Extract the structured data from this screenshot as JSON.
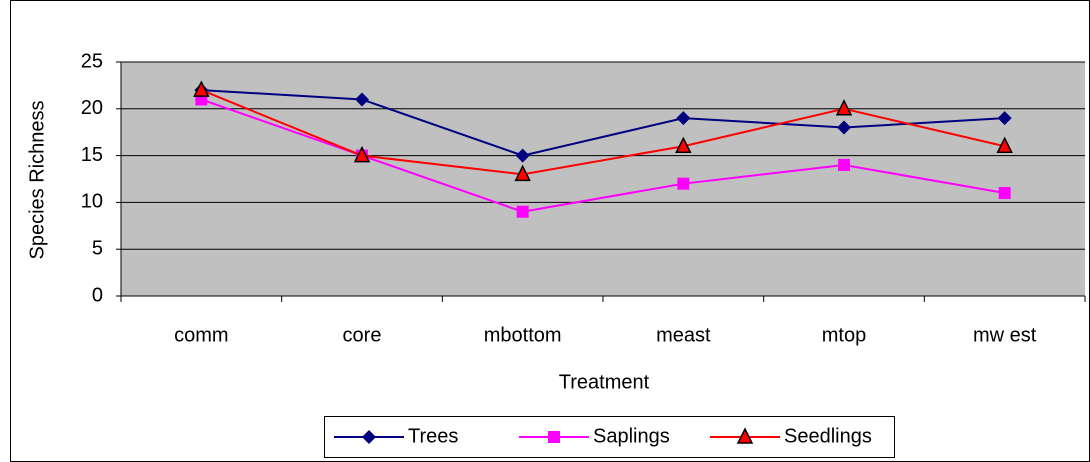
{
  "chart_data": {
    "type": "line",
    "x_label": "Treatment",
    "y_label": "Species Richness",
    "categories": [
      "comm",
      "core",
      "mbottom",
      "meast",
      "mtop",
      "mw est"
    ],
    "series": [
      {
        "name": "Trees",
        "color": "#000080",
        "marker": "diamond",
        "values": [
          22,
          21,
          15,
          19,
          18,
          19
        ]
      },
      {
        "name": "Saplings",
        "color": "#ff00ff",
        "marker": "square",
        "values": [
          21,
          15,
          9,
          12,
          14,
          11
        ]
      },
      {
        "name": "Seedlings",
        "color": "#ff0000",
        "marker": "triangle",
        "values": [
          22,
          15,
          13,
          16,
          20,
          16
        ]
      }
    ],
    "ylim": [
      0,
      25
    ],
    "yticks": [
      0,
      5,
      10,
      15,
      20,
      25
    ],
    "grid": true,
    "plot_background": "#c0c0c0",
    "legend": "bottom"
  }
}
